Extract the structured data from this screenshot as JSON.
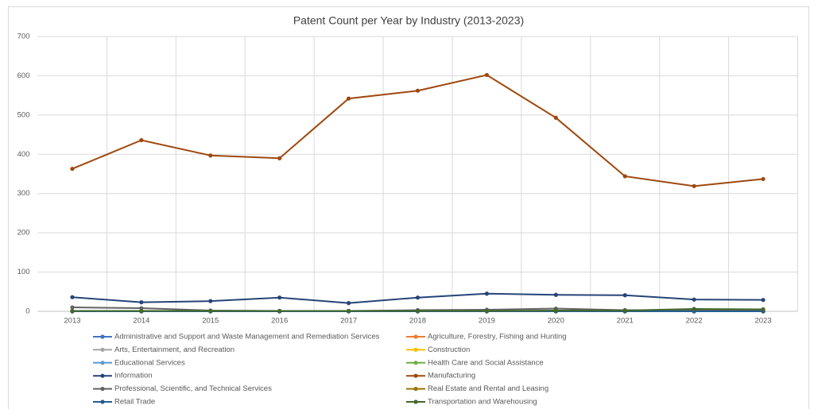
{
  "chart_data": {
    "type": "line",
    "title": "Patent Count per Year by Industry (2013-2023)",
    "categories": [
      "2013",
      "2014",
      "2015",
      "2016",
      "2017",
      "2018",
      "2019",
      "2020",
      "2021",
      "2022",
      "2023"
    ],
    "ylim": [
      0,
      700
    ],
    "yticks": [
      0,
      100,
      200,
      300,
      400,
      500,
      600,
      700
    ],
    "grid": true,
    "legend": "bottom",
    "series": [
      {
        "name": "Administrative and Support and Waste Management and Remediation Services",
        "color": "#4472c4",
        "values": [
          0,
          0,
          0,
          0,
          0,
          0,
          0,
          0,
          0,
          0,
          0
        ]
      },
      {
        "name": "Agriculture, Forestry, Fishing and Hunting",
        "color": "#ed7d31",
        "values": [
          0,
          0,
          0,
          0,
          0,
          0,
          0,
          0,
          0,
          0,
          0
        ]
      },
      {
        "name": "Arts, Entertainment, and Recreation",
        "color": "#a5a5a5",
        "values": [
          0,
          0,
          0,
          0,
          0,
          0,
          0,
          0,
          0,
          0,
          0
        ]
      },
      {
        "name": "Construction",
        "color": "#ffc000",
        "values": [
          0,
          0,
          0,
          0,
          0,
          0,
          0,
          0,
          0,
          0,
          0
        ]
      },
      {
        "name": "Educational Services",
        "color": "#5b9bd5",
        "values": [
          0,
          0,
          0,
          0,
          0,
          0,
          0,
          0,
          0,
          0,
          0
        ]
      },
      {
        "name": "Health Care and Social Assistance",
        "color": "#70ad47",
        "values": [
          0,
          0,
          0,
          0,
          0,
          0,
          0,
          0,
          0,
          0,
          0
        ]
      },
      {
        "name": "Information",
        "color": "#264478",
        "values": [
          36,
          23,
          26,
          35,
          21,
          35,
          45,
          42,
          41,
          30,
          29
        ]
      },
      {
        "name": "Manufacturing",
        "color": "#9e480e",
        "values": [
          363,
          436,
          397,
          390,
          542,
          562,
          602,
          493,
          344,
          319,
          337
        ]
      },
      {
        "name": "Professional, Scientific, and Technical Services",
        "color": "#636363",
        "values": [
          10,
          8,
          2,
          1,
          1,
          3,
          4,
          7,
          3,
          3,
          3
        ]
      },
      {
        "name": "Real Estate and Rental and Leasing",
        "color": "#997300",
        "values": [
          0,
          0,
          0,
          0,
          0,
          0,
          0,
          0,
          0,
          0,
          0
        ]
      },
      {
        "name": "Retail Trade",
        "color": "#255e91",
        "values": [
          0,
          0,
          0,
          0,
          0,
          0,
          0,
          0,
          0,
          0,
          0
        ]
      },
      {
        "name": "Transportation and Warehousing",
        "color": "#43682b",
        "values": [
          1,
          1,
          1,
          1,
          1,
          1,
          1,
          2,
          2,
          6,
          5
        ]
      }
    ]
  }
}
